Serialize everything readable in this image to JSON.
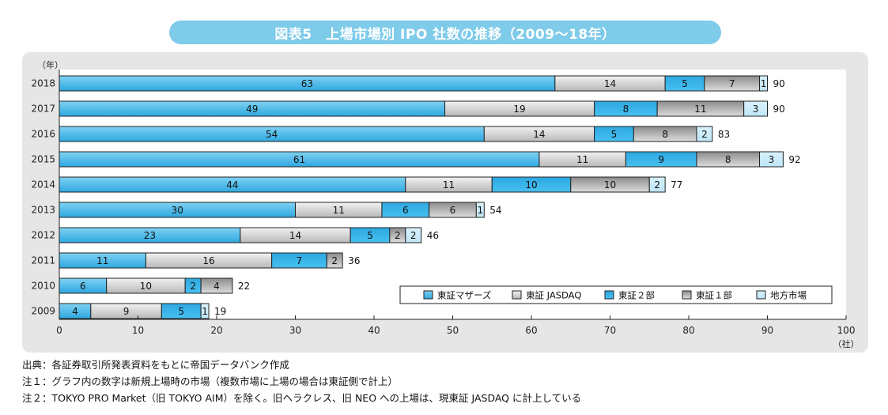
{
  "title": "図表5　上場市場別 IPO 社数の推移（2009〜18年）",
  "colors": {
    "mothers_top": "#7fd2f2",
    "mothers_bottom": "#2ea7e0",
    "jasdaq_top": "#f2f2f2",
    "jasdaq_bottom": "#b8b8b8",
    "tse2_top": "#2ea7e0",
    "tse2_bottom": "#46c0f0",
    "tse1_top": "#8c8c8c",
    "tse1_bottom": "#dcdcdc",
    "local_top": "#d8f1fb",
    "local_bottom": "#bfe6f7",
    "panel": "#e6e6e6",
    "title_bg": "#7fcbea"
  },
  "chart_data": {
    "type": "bar",
    "orientation": "horizontal",
    "stacked": true,
    "y_axis_label": "（年）",
    "x_axis_unit": "（社）",
    "xlim": [
      0,
      100
    ],
    "x_ticks": [
      "0",
      "10",
      "20",
      "30",
      "40",
      "50",
      "60",
      "70",
      "80",
      "90",
      "100"
    ],
    "categories": [
      "2018",
      "2017",
      "2016",
      "2015",
      "2014",
      "2013",
      "2012",
      "2011",
      "2010",
      "2009"
    ],
    "series": [
      {
        "name": "東証マザーズ",
        "key": "mothers",
        "values": [
          63,
          49,
          54,
          61,
          44,
          30,
          23,
          11,
          6,
          4
        ]
      },
      {
        "name": "東証 JASDAQ",
        "key": "jasdaq",
        "values": [
          14,
          19,
          14,
          11,
          11,
          11,
          14,
          16,
          10,
          9
        ]
      },
      {
        "name": "東証２部",
        "key": "tse2",
        "values": [
          5,
          8,
          5,
          9,
          10,
          6,
          5,
          7,
          2,
          5
        ]
      },
      {
        "name": "東証１部",
        "key": "tse1",
        "values": [
          7,
          11,
          8,
          8,
          10,
          6,
          2,
          2,
          4,
          0
        ]
      },
      {
        "name": "地方市場",
        "key": "local",
        "values": [
          1,
          3,
          2,
          3,
          2,
          1,
          2,
          0,
          0,
          1
        ]
      }
    ],
    "totals": [
      90,
      90,
      83,
      92,
      77,
      54,
      46,
      36,
      22,
      19
    ],
    "legend_position": "bottom-right inside plot"
  },
  "notes": [
    "出典：各証券取引所発表資料をもとに帝国データバンク作成",
    "注１：グラフ内の数字は新規上場時の市場（複数市場に上場の場合は東証側で計上）",
    "注２：TOKYO PRO Market（旧 TOKYO AIM）を除く。旧ヘラクレス、旧 NEO への上場は、現東証 JASDAQ に計上している"
  ]
}
